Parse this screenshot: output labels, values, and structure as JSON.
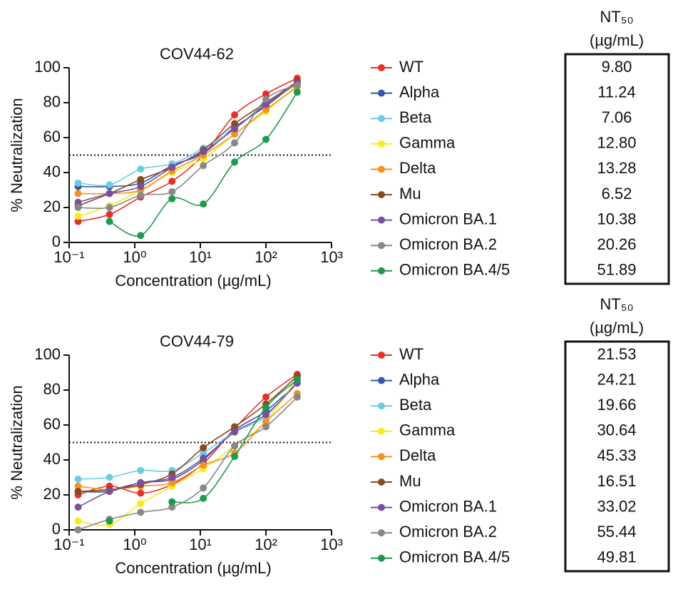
{
  "chart_data": [
    {
      "type": "scatter",
      "title": "COV44-62",
      "xlabel": "Concentration (µg/mL)",
      "ylabel": "% Neutralization",
      "log_x": true,
      "xlim": [
        0.1,
        1000
      ],
      "ylim": [
        0,
        100
      ],
      "xticks": [
        {
          "value": 0.1,
          "label": "10⁻¹"
        },
        {
          "value": 1,
          "label": "10⁰"
        },
        {
          "value": 10,
          "label": "10¹"
        },
        {
          "value": 100,
          "label": "10²"
        },
        {
          "value": 1000,
          "label": "10³"
        }
      ],
      "yticks": [
        0,
        20,
        40,
        60,
        80,
        100
      ],
      "hline": 50,
      "x": [
        0.137,
        0.412,
        1.23,
        3.7,
        11.1,
        33.3,
        100,
        300
      ],
      "series": [
        {
          "name": "WT",
          "color": "#e8302a",
          "values": [
            12,
            16,
            26,
            35,
            50,
            73,
            85,
            94
          ]
        },
        {
          "name": "Alpha",
          "color": "#3a56a8",
          "values": [
            32,
            32,
            34,
            44,
            51,
            66,
            78,
            92
          ]
        },
        {
          "name": "Beta",
          "color": "#6ccde0",
          "values": [
            34,
            33,
            42,
            45,
            54,
            65,
            80,
            91
          ]
        },
        {
          "name": "Gamma",
          "color": "#f5ec1d",
          "values": [
            15,
            21,
            30,
            40,
            48,
            62,
            75,
            90
          ]
        },
        {
          "name": "Delta",
          "color": "#f39322",
          "values": [
            28,
            28,
            30,
            41,
            50,
            62,
            76,
            89
          ]
        },
        {
          "name": "Mu",
          "color": "#8b4a1e",
          "values": [
            21,
            28,
            36,
            43,
            53,
            68,
            80,
            92
          ]
        },
        {
          "name": "Omicron BA.1",
          "color": "#7a4fa0",
          "values": [
            23,
            28,
            32,
            43,
            52,
            65,
            79,
            91
          ]
        },
        {
          "name": "Omicron BA.2",
          "color": "#888888",
          "values": [
            20,
            20,
            27,
            29,
            44,
            57,
            82,
            90
          ]
        },
        {
          "name": "Omicron BA.4/5",
          "color": "#1e9a4f",
          "values": [
            null,
            12,
            4,
            25,
            22,
            46,
            59,
            86
          ]
        }
      ],
      "table_title": "NT₅₀",
      "table_unit": "(µg/mL)",
      "table_values": [
        "9.80",
        "11.24",
        "7.06",
        "12.80",
        "13.28",
        "6.52",
        "10.38",
        "20.26",
        "51.89"
      ]
    },
    {
      "type": "scatter",
      "title": "COV44-79",
      "xlabel": "Concentration (µg/mL)",
      "ylabel": "% Neutralization",
      "log_x": true,
      "xlim": [
        0.1,
        1000
      ],
      "ylim": [
        0,
        100
      ],
      "xticks": [
        {
          "value": 0.1,
          "label": "10⁻¹"
        },
        {
          "value": 1,
          "label": "10⁰"
        },
        {
          "value": 10,
          "label": "10¹"
        },
        {
          "value": 100,
          "label": "10²"
        },
        {
          "value": 1000,
          "label": "10³"
        }
      ],
      "yticks": [
        0,
        20,
        40,
        60,
        80,
        100
      ],
      "hline": 50,
      "x": [
        0.137,
        0.412,
        1.23,
        3.7,
        11.1,
        33.3,
        100,
        300
      ],
      "series": [
        {
          "name": "WT",
          "color": "#e8302a",
          "values": [
            20,
            25,
            21,
            26,
            38,
            58,
            76,
            89
          ]
        },
        {
          "name": "Alpha",
          "color": "#3a56a8",
          "values": [
            22,
            22,
            27,
            29,
            40,
            57,
            68,
            84
          ]
        },
        {
          "name": "Beta",
          "color": "#6ccde0",
          "values": [
            29,
            30,
            34,
            34,
            44,
            56,
            65,
            86
          ]
        },
        {
          "name": "Gamma",
          "color": "#f5ec1d",
          "values": [
            5,
            3,
            15,
            25,
            35,
            48,
            62,
            87
          ]
        },
        {
          "name": "Delta",
          "color": "#f39322",
          "values": [
            25,
            23,
            25,
            27,
            37,
            44,
            62,
            78
          ]
        },
        {
          "name": "Mu",
          "color": "#8b4a1e",
          "values": [
            22,
            23,
            26,
            32,
            47,
            59,
            72,
            88
          ]
        },
        {
          "name": "Omicron BA.1",
          "color": "#7a4fa0",
          "values": [
            13,
            22,
            27,
            30,
            41,
            56,
            66,
            84
          ]
        },
        {
          "name": "Omicron BA.2",
          "color": "#888888",
          "values": [
            0,
            6,
            10,
            13,
            24,
            48,
            59,
            76
          ]
        },
        {
          "name": "Omicron BA.4/5",
          "color": "#1e9a4f",
          "values": [
            null,
            5,
            null,
            16,
            18,
            42,
            70,
            86
          ]
        }
      ],
      "table_title": "NT₅₀",
      "table_unit": "(µg/mL)",
      "table_values": [
        "21.53",
        "24.21",
        "19.66",
        "30.64",
        "45.33",
        "16.51",
        "33.02",
        "55.44",
        "49.81"
      ]
    }
  ]
}
